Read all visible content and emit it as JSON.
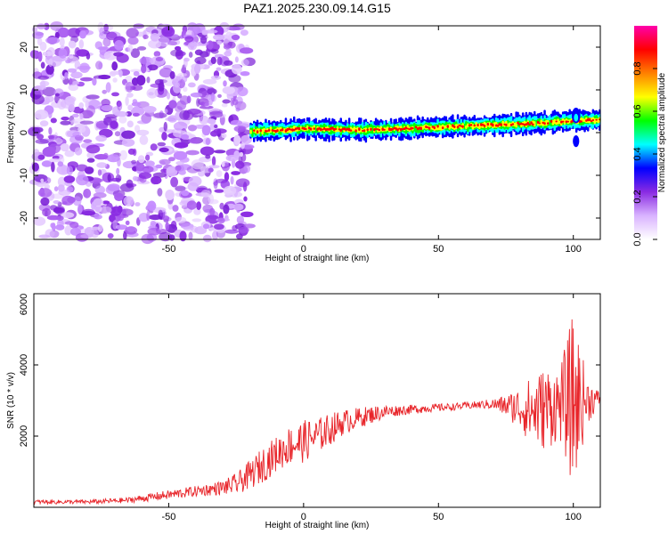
{
  "title": "PAZ1.2025.230.09.14.G15",
  "chart_data": [
    {
      "type": "heatmap",
      "xlabel": "Height of straight line (km)",
      "ylabel": "Frequency (Hz)",
      "xlim": [
        -100,
        110
      ],
      "ylim": [
        -25,
        25
      ],
      "xticks": [
        -50,
        0,
        50,
        100
      ],
      "yticks": [
        -20,
        -10,
        0,
        10,
        20
      ],
      "colorbar": {
        "label": "Normalized spectral amplitude",
        "range": [
          0,
          1
        ],
        "ticks": [
          "0.0",
          "0.2",
          "0.4",
          "0.6",
          "0.8"
        ],
        "colormap": [
          "#ffffff",
          "#d9b3ff",
          "#8a2be2",
          "#0000ff",
          "#00ffff",
          "#00ff00",
          "#ffff00",
          "#ff8000",
          "#ff0000",
          "#ff00aa"
        ]
      },
      "noise_region_x": [
        -100,
        -20
      ],
      "ridge": {
        "x": [
          -20,
          -10,
          0,
          10,
          20,
          30,
          40,
          50,
          60,
          70,
          80,
          90,
          100,
          105,
          110
        ],
        "frequency": [
          0.3,
          0.5,
          1.0,
          0.8,
          0.6,
          0.8,
          1.0,
          1.3,
          1.5,
          1.8,
          2.0,
          2.3,
          2.8,
          2.8,
          3.0
        ]
      }
    },
    {
      "type": "line",
      "xlabel": "Height of straight line (km)",
      "ylabel": "SNR (10 * v/v)",
      "xlim": [
        -100,
        110
      ],
      "ylim": [
        0,
        6000
      ],
      "xticks": [
        -50,
        0,
        50,
        100
      ],
      "yticks": [
        2000,
        4000,
        6000
      ],
      "series": [
        {
          "color": "#e8252a",
          "x": [
            -100,
            -80,
            -65,
            -60,
            -50,
            -40,
            -30,
            -25,
            -20,
            -15,
            -10,
            -5,
            0,
            5,
            10,
            15,
            20,
            25,
            30,
            35,
            40,
            45,
            50,
            55,
            60,
            65,
            70,
            75,
            80,
            85,
            90,
            95,
            100,
            105,
            110
          ],
          "values": [
            150,
            150,
            200,
            250,
            350,
            450,
            550,
            650,
            900,
            1200,
            1500,
            1750,
            1850,
            2000,
            2200,
            2400,
            2500,
            2600,
            2680,
            2720,
            2750,
            2780,
            2800,
            2820,
            2850,
            2880,
            2900,
            2850,
            2800,
            2700,
            2800,
            2900,
            3000,
            3000,
            3050
          ],
          "noise_amplitude": [
            60,
            60,
            80,
            100,
            130,
            150,
            200,
            300,
            400,
            500,
            500,
            550,
            600,
            500,
            450,
            350,
            300,
            250,
            200,
            150,
            130,
            120,
            110,
            100,
            100,
            110,
            150,
            300,
            600,
            1000,
            1200,
            1000,
            2500,
            700,
            150
          ]
        }
      ]
    }
  ]
}
